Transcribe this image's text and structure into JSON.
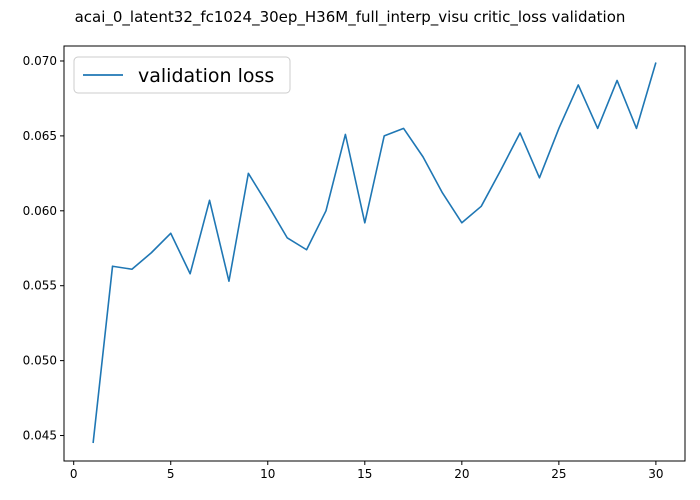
{
  "chart_data": {
    "type": "line",
    "title": "acai_0_latent32_fc1024_30ep_H36M_full_interp_visu critic_loss validation",
    "xlabel": "",
    "ylabel": "",
    "xlim": [
      -0.5,
      31.5
    ],
    "ylim": [
      0.0433,
      0.071
    ],
    "x_ticks": [
      0,
      5,
      10,
      15,
      20,
      25,
      30
    ],
    "x_tick_labels": [
      "0",
      "5",
      "10",
      "15",
      "20",
      "25",
      "30"
    ],
    "y_ticks": [
      0.045,
      0.05,
      0.055,
      0.06,
      0.065,
      0.07
    ],
    "y_tick_labels": [
      "0.045",
      "0.050",
      "0.055",
      "0.060",
      "0.065",
      "0.070"
    ],
    "grid": false,
    "legend_position": "top-left",
    "series": [
      {
        "name": "validation loss",
        "color": "#1f77b4",
        "x": [
          1,
          2,
          3,
          4,
          5,
          6,
          7,
          8,
          9,
          10,
          11,
          12,
          13,
          14,
          15,
          16,
          17,
          18,
          19,
          20,
          21,
          22,
          23,
          24,
          25,
          26,
          27,
          28,
          29,
          30
        ],
        "y": [
          0.0445,
          0.0563,
          0.0561,
          0.0572,
          0.0585,
          0.0558,
          0.0607,
          0.0553,
          0.0625,
          0.0604,
          0.0582,
          0.0574,
          0.06,
          0.0651,
          0.0592,
          0.065,
          0.0655,
          0.0636,
          0.0612,
          0.0592,
          0.0603,
          0.0627,
          0.0652,
          0.0622,
          0.0655,
          0.0684,
          0.0655,
          0.0687,
          0.0655,
          0.0699
        ]
      }
    ]
  }
}
